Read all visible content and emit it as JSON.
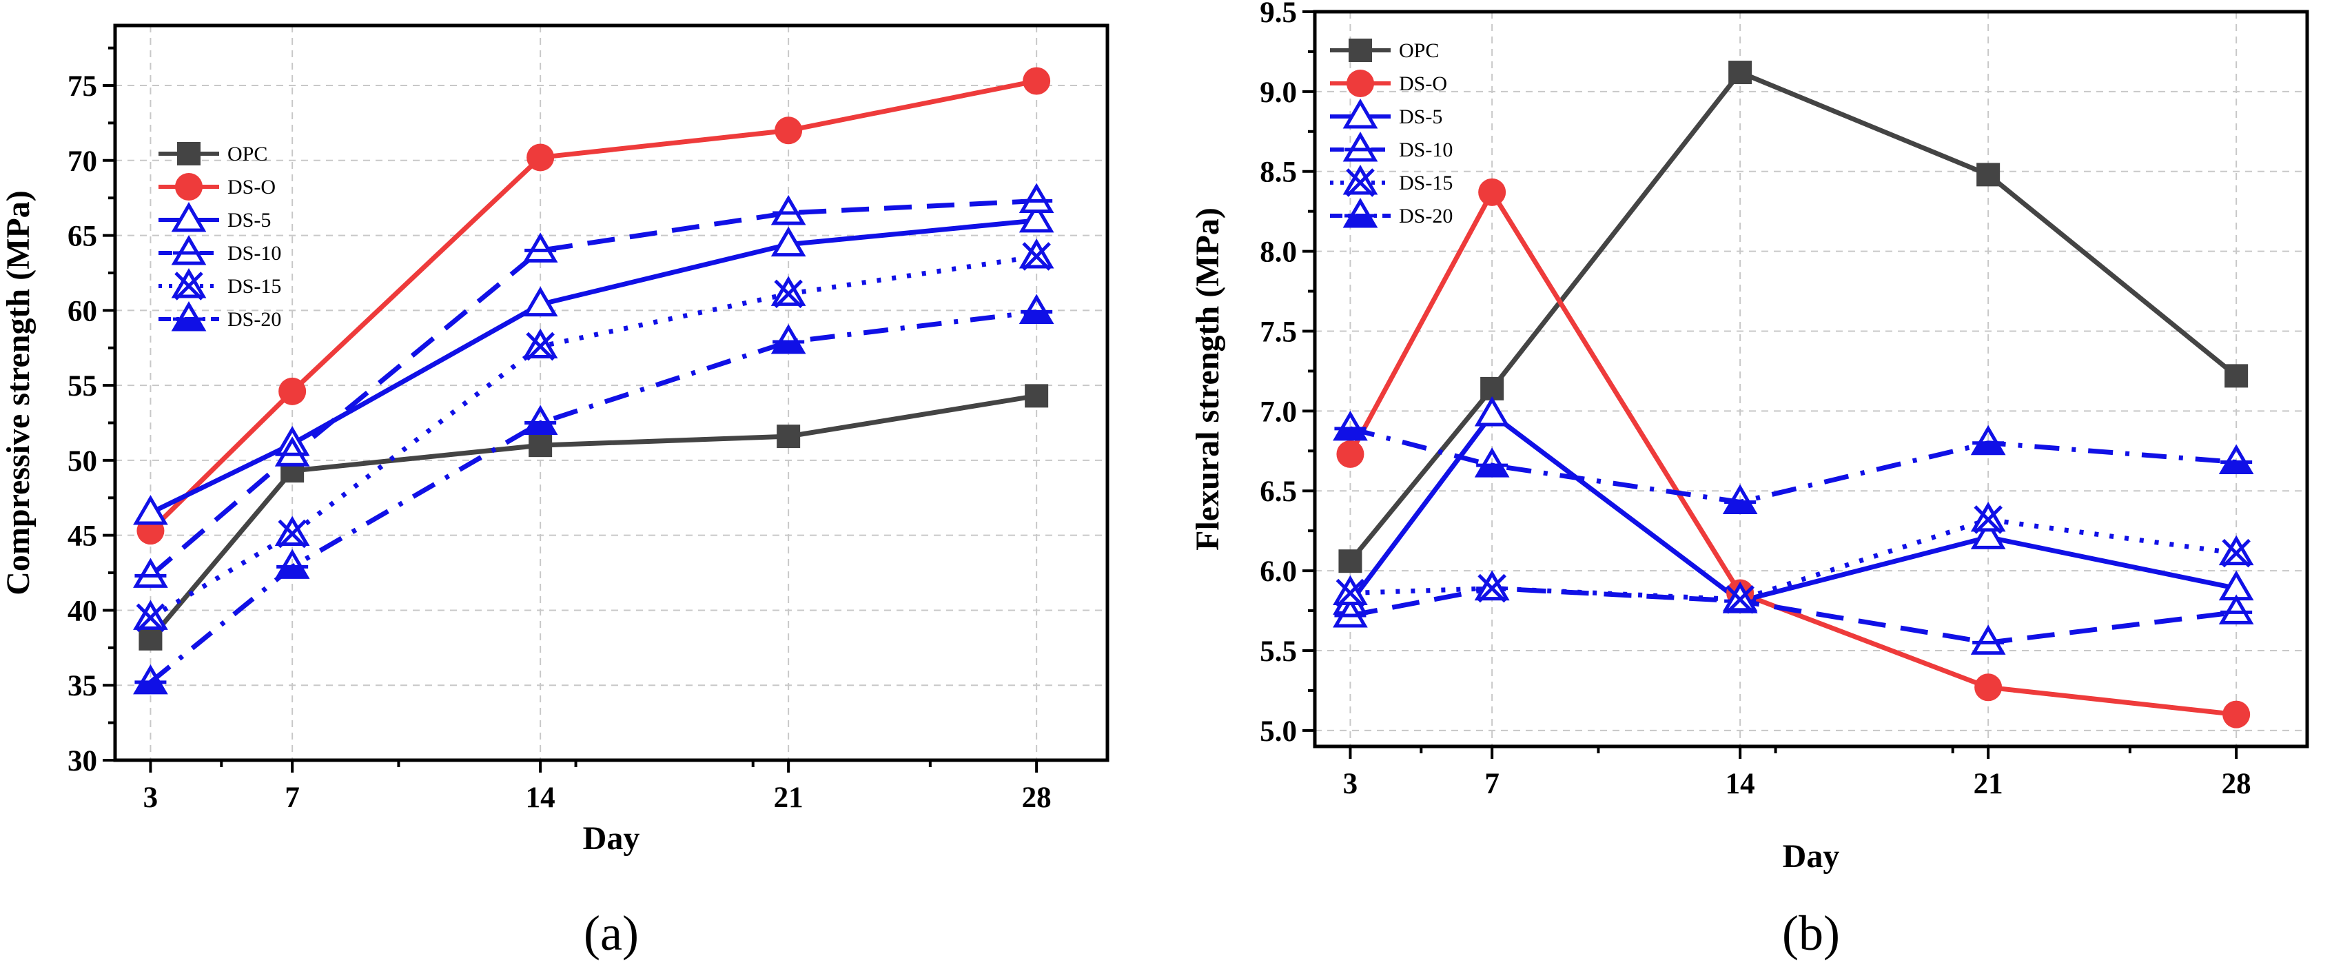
{
  "style": {
    "series_colors": {
      "OPC": "#444444",
      "DS-O": "#ee3b3b",
      "DS-5": "#1010e6",
      "DS-10": "#1010e6",
      "DS-15": "#1010e6",
      "DS-20": "#1010e6"
    },
    "grid_color": "#c8c8c8"
  },
  "chart_data": [
    {
      "type": "line",
      "panel_label": "(a)",
      "xlabel": "Day",
      "ylabel": "Compressive strength (MPa)",
      "x": [
        3,
        7,
        14,
        21,
        28
      ],
      "xticks": [
        "3",
        "7",
        "14",
        "21",
        "28"
      ],
      "xlim": [
        2,
        30
      ],
      "ylim": [
        30,
        79
      ],
      "yticks": [
        "30",
        "35",
        "40",
        "45",
        "50",
        "55",
        "60",
        "65",
        "70",
        "75"
      ],
      "grid": true,
      "legend_position": "upper-left",
      "series": [
        {
          "name": "OPC",
          "values": [
            38.1,
            49.3,
            51.0,
            51.6,
            54.3
          ]
        },
        {
          "name": "DS-O",
          "values": [
            45.3,
            54.6,
            70.2,
            72.0,
            75.3
          ]
        },
        {
          "name": "DS-5",
          "values": [
            46.5,
            51.1,
            60.4,
            64.4,
            66.0
          ]
        },
        {
          "name": "DS-10",
          "values": [
            42.3,
            50.4,
            64.0,
            66.5,
            67.3
          ]
        },
        {
          "name": "DS-15",
          "values": [
            39.5,
            45.1,
            57.6,
            61.1,
            63.6
          ]
        },
        {
          "name": "DS-20",
          "values": [
            35.2,
            42.9,
            52.5,
            57.9,
            59.9
          ]
        }
      ]
    },
    {
      "type": "line",
      "panel_label": "(b)",
      "xlabel": "Day",
      "ylabel": "Flexural strength (MPa)",
      "x": [
        3,
        7,
        14,
        21,
        28
      ],
      "xticks": [
        "3",
        "7",
        "14",
        "21",
        "28"
      ],
      "xlim": [
        2,
        30
      ],
      "ylim": [
        4.9,
        9.5
      ],
      "yticks": [
        "5.0",
        "5.5",
        "6.0",
        "6.5",
        "7.0",
        "7.5",
        "8.0",
        "8.5",
        "9.0",
        "9.5"
      ],
      "grid": true,
      "legend_position": "upper-left",
      "series": [
        {
          "name": "OPC",
          "values": [
            6.06,
            7.14,
            9.12,
            8.48,
            7.22
          ]
        },
        {
          "name": "DS-O",
          "values": [
            6.73,
            8.37,
            5.86,
            5.27,
            5.1
          ]
        },
        {
          "name": "DS-5",
          "values": [
            5.8,
            6.98,
            5.81,
            6.21,
            5.89
          ]
        },
        {
          "name": "DS-10",
          "values": [
            5.72,
            5.89,
            5.81,
            5.55,
            5.74
          ]
        },
        {
          "name": "DS-15",
          "values": [
            5.86,
            5.89,
            5.82,
            6.32,
            6.11
          ]
        },
        {
          "name": "DS-20",
          "values": [
            6.89,
            6.66,
            6.43,
            6.8,
            6.68
          ]
        }
      ]
    }
  ]
}
